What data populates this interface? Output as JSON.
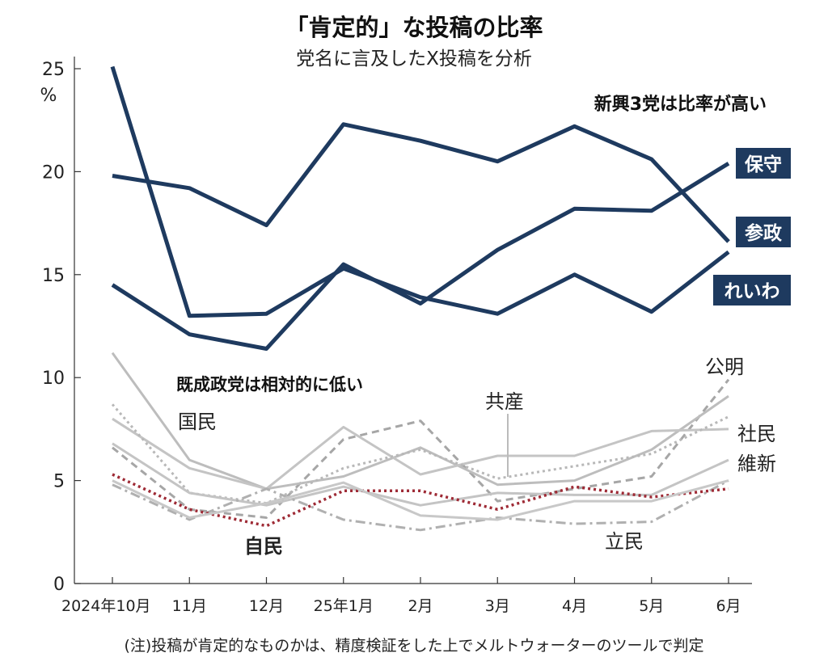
{
  "chart_data": {
    "type": "line",
    "title": "「肯定的」な投稿の比率",
    "subtitle": "党名に言及したX投稿を分析",
    "ylabel": "%",
    "ylim": [
      0,
      25
    ],
    "yticks": [
      0,
      5,
      10,
      15,
      20,
      25
    ],
    "categories": [
      "2024年10月",
      "11月",
      "12月",
      "25年1月",
      "2月",
      "3月",
      "4月",
      "5月",
      "6月"
    ],
    "annotations": {
      "emerging": "新興3党は比率が高い",
      "established": "既成政党は相対的に低い"
    },
    "note": "(注)投稿が肯定的なものかは、精度検証をした上でメルトウォーターのツールで判定",
    "series": [
      {
        "name": "保守",
        "group": "emerging",
        "style": "solid",
        "color": "#1e3a5f",
        "values": [
          14.5,
          12.1,
          11.4,
          15.5,
          13.6,
          16.2,
          18.2,
          18.1,
          20.4
        ]
      },
      {
        "name": "参政",
        "group": "emerging",
        "style": "solid",
        "color": "#1e3a5f",
        "values": [
          19.8,
          19.2,
          17.4,
          22.3,
          21.5,
          20.5,
          22.2,
          20.6,
          16.6
        ]
      },
      {
        "name": "れいわ",
        "group": "emerging",
        "style": "solid",
        "color": "#1e3a5f",
        "values": [
          25.1,
          13.0,
          13.1,
          15.3,
          13.9,
          13.1,
          15.0,
          13.2,
          16.1
        ]
      },
      {
        "name": "公明",
        "group": "established",
        "style": "dashed",
        "color": "#a6a6a6",
        "values": [
          6.6,
          3.6,
          3.2,
          7.0,
          7.9,
          4.0,
          4.6,
          5.2,
          9.9
        ]
      },
      {
        "name": "国民",
        "group": "established",
        "style": "solid",
        "color": "#bdbdbd",
        "values": [
          11.2,
          6.0,
          4.6,
          5.2,
          6.6,
          4.8,
          5.0,
          6.5,
          9.1
        ]
      },
      {
        "name": "共産",
        "group": "established",
        "style": "solid",
        "color": "#c4c4c4",
        "values": [
          8.0,
          5.6,
          4.6,
          7.6,
          5.3,
          6.2,
          6.2,
          7.4,
          7.5
        ]
      },
      {
        "name": "社民",
        "group": "established",
        "style": "dotted",
        "color": "#b8b8b8",
        "values": [
          8.7,
          4.4,
          3.9,
          5.6,
          6.5,
          5.1,
          5.7,
          6.3,
          8.1
        ]
      },
      {
        "name": "維新",
        "group": "established",
        "style": "solid",
        "color": "#c4c4c4",
        "values": [
          6.8,
          4.4,
          3.8,
          4.7,
          3.8,
          4.4,
          4.3,
          4.3,
          6.0
        ]
      },
      {
        "name": "立民",
        "group": "established",
        "style": "dashdot",
        "color": "#b0b0b0",
        "values": [
          4.8,
          3.1,
          4.6,
          3.1,
          2.6,
          3.2,
          2.9,
          3.0,
          5.0
        ]
      },
      {
        "name": "自民",
        "group": "established",
        "style": "dotted",
        "color": "#9e2a35",
        "values": [
          5.3,
          3.6,
          2.8,
          4.5,
          4.5,
          3.6,
          4.7,
          4.2,
          4.6
        ]
      },
      {
        "name": "",
        "group": "established",
        "style": "solid",
        "color": "#c8c8c8",
        "values": [
          5.0,
          3.2,
          3.9,
          4.9,
          3.3,
          3.1,
          4.0,
          4.0,
          5.0
        ]
      }
    ]
  }
}
